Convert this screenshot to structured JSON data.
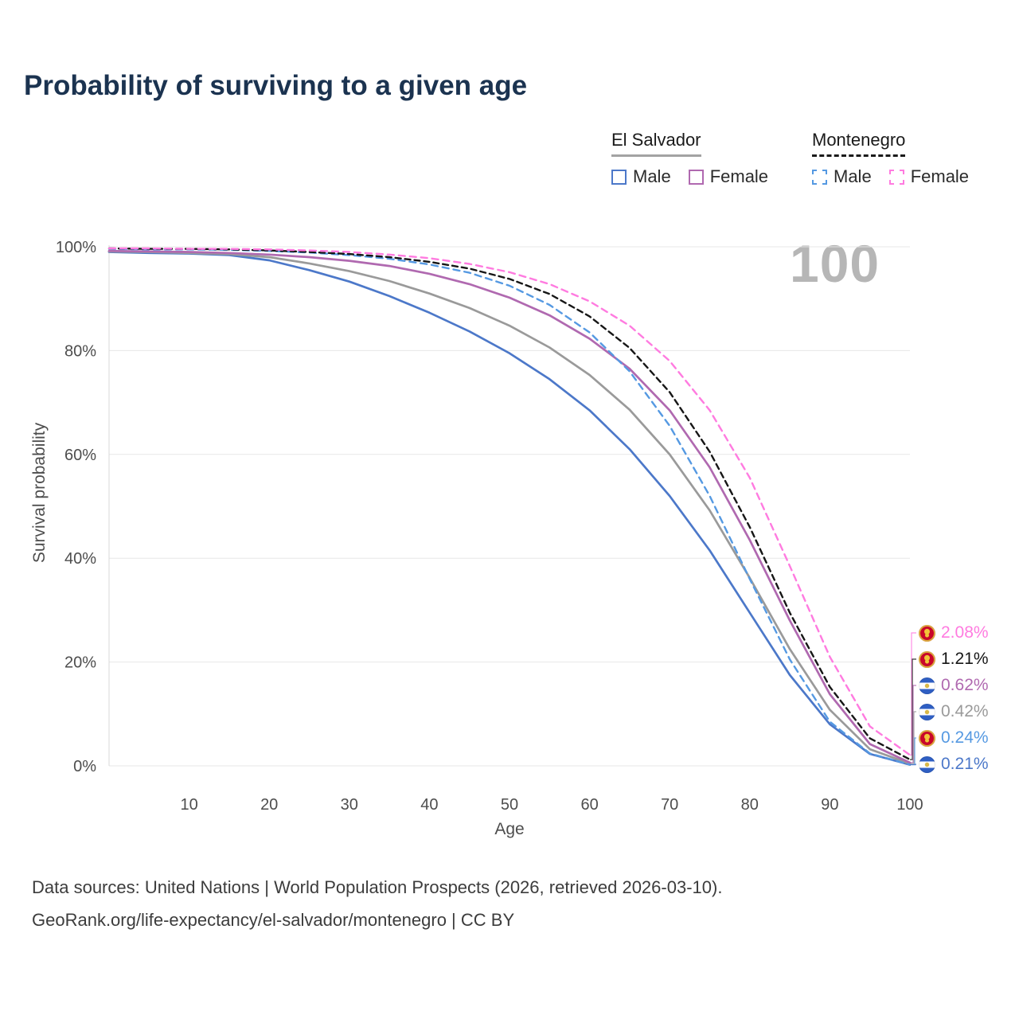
{
  "title": "Probability of surviving to a given age",
  "legend": {
    "groups": [
      {
        "country": "El Salvador",
        "underline_style": "solid",
        "underline_color": "#a3a3a3",
        "items": [
          {
            "label": "Male",
            "color": "#4c78c9",
            "dashed": false
          },
          {
            "label": "Female",
            "color": "#b069b0",
            "dashed": false
          }
        ]
      },
      {
        "country": "Montenegro",
        "underline_style": "dashed",
        "underline_color": "#1a1a1a",
        "items": [
          {
            "label": "Male",
            "color": "#5599e2",
            "dashed": true
          },
          {
            "label": "Female",
            "color": "#ff7be0",
            "dashed": true
          }
        ]
      }
    ]
  },
  "chart_data": {
    "type": "line",
    "title": "Probability of surviving to a given age",
    "xlabel": "Age",
    "ylabel": "Survival probability",
    "xlim": [
      0,
      100
    ],
    "ylim": [
      0,
      100
    ],
    "grid": "horizontal",
    "highlight_label": "100",
    "x_ticks": [
      {
        "value": 10,
        "label": "10"
      },
      {
        "value": 20,
        "label": "20"
      },
      {
        "value": 30,
        "label": "30"
      },
      {
        "value": 40,
        "label": "40"
      },
      {
        "value": 50,
        "label": "50"
      },
      {
        "value": 60,
        "label": "60"
      },
      {
        "value": 70,
        "label": "70"
      },
      {
        "value": 80,
        "label": "80"
      },
      {
        "value": 90,
        "label": "90"
      },
      {
        "value": 100,
        "label": "100"
      }
    ],
    "y_ticks": [
      {
        "value": 0,
        "label": "0%"
      },
      {
        "value": 20,
        "label": "20%"
      },
      {
        "value": 40,
        "label": "40%"
      },
      {
        "value": 60,
        "label": "60%"
      },
      {
        "value": 80,
        "label": "80%"
      },
      {
        "value": 100,
        "label": "100%"
      }
    ],
    "x": [
      0,
      5,
      10,
      15,
      20,
      25,
      30,
      35,
      40,
      45,
      50,
      55,
      60,
      65,
      70,
      75,
      80,
      85,
      90,
      95,
      100
    ],
    "series": [
      {
        "name": "El Salvador Male",
        "country": "el-salvador",
        "color": "#4c78c9",
        "dash": null,
        "values": [
          99.0,
          98.8,
          98.7,
          98.4,
          97.4,
          95.5,
          93.3,
          90.5,
          87.3,
          83.7,
          79.5,
          74.5,
          68.5,
          61.0,
          52.0,
          41.5,
          29.5,
          17.5,
          8.0,
          2.3,
          0.21
        ]
      },
      {
        "name": "El Salvador (both sexes)",
        "country": "el-salvador",
        "color": "#9a9a9a",
        "dash": null,
        "values": [
          99.1,
          99.0,
          98.8,
          98.6,
          98.0,
          96.8,
          95.3,
          93.4,
          91.0,
          88.2,
          84.8,
          80.6,
          75.3,
          68.6,
          60.0,
          49.2,
          36.2,
          22.5,
          10.8,
          3.2,
          0.42
        ]
      },
      {
        "name": "El Salvador Female",
        "country": "el-salvador",
        "color": "#b069b0",
        "dash": null,
        "values": [
          99.2,
          99.1,
          99.0,
          98.8,
          98.5,
          98.0,
          97.3,
          96.3,
          94.8,
          92.8,
          90.2,
          86.8,
          82.3,
          76.5,
          68.5,
          57.5,
          43.5,
          28.0,
          13.8,
          4.2,
          0.62
        ]
      },
      {
        "name": "Montenegro Male",
        "country": "montenegro",
        "color": "#5599e2",
        "dash": "8 6",
        "values": [
          99.6,
          99.5,
          99.5,
          99.4,
          99.2,
          98.9,
          98.4,
          97.7,
          96.6,
          95.0,
          92.5,
          88.8,
          83.5,
          76.0,
          65.5,
          52.0,
          36.0,
          20.5,
          8.5,
          2.4,
          0.24
        ]
      },
      {
        "name": "Montenegro (both sexes)",
        "country": "montenegro",
        "color": "#161616",
        "dash": "7 5",
        "values": [
          99.7,
          99.6,
          99.6,
          99.5,
          99.3,
          99.0,
          98.6,
          98.0,
          97.1,
          95.8,
          93.8,
          90.9,
          86.6,
          80.5,
          72.0,
          60.5,
          46.0,
          29.5,
          15.2,
          5.3,
          1.21
        ]
      },
      {
        "name": "Montenegro Female",
        "country": "montenegro",
        "color": "#ff7be0",
        "dash": "8 6",
        "values": [
          99.7,
          99.7,
          99.6,
          99.6,
          99.5,
          99.3,
          99.0,
          98.5,
          97.8,
          96.7,
          95.1,
          92.8,
          89.5,
          84.8,
          78.0,
          68.5,
          55.5,
          38.5,
          21.0,
          7.6,
          2.08
        ]
      }
    ],
    "end_labels": [
      {
        "series": "Montenegro Female",
        "label": "2.08%",
        "color": "#ff7be0",
        "flag": "montenegro"
      },
      {
        "series": "Montenegro (both sexes)",
        "label": "1.21%",
        "color": "#161616",
        "flag": "montenegro"
      },
      {
        "series": "El Salvador Female",
        "label": "0.62%",
        "color": "#b069b0",
        "flag": "el-salvador"
      },
      {
        "series": "El Salvador (both sexes)",
        "label": "0.42%",
        "color": "#9a9a9a",
        "flag": "el-salvador"
      },
      {
        "series": "Montenegro Male",
        "label": "0.24%",
        "color": "#5599e2",
        "flag": "montenegro"
      },
      {
        "series": "El Salvador Male",
        "label": "0.21%",
        "color": "#4c78c9",
        "flag": "el-salvador"
      }
    ]
  },
  "footer": {
    "line1": "Data sources: United Nations | World Population Prospects (2026, retrieved 2026-03-10).",
    "line2": "GeoRank.org/life-expectancy/el-salvador/montenegro | CC BY"
  }
}
